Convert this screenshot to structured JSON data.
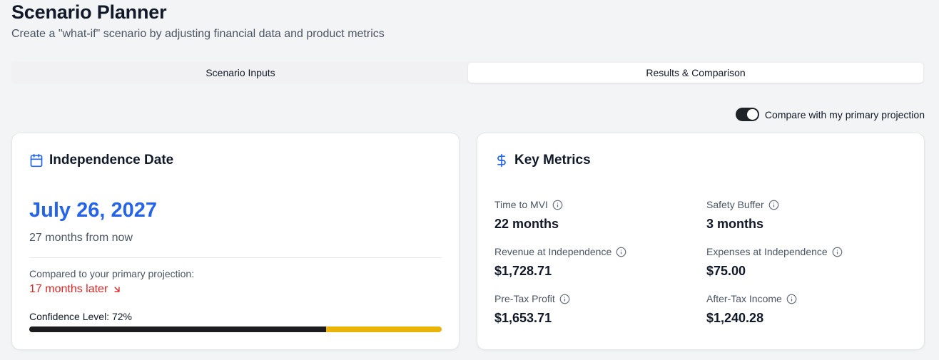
{
  "header": {
    "title": "Scenario Planner",
    "subtitle": "Create a \"what-if\" scenario by adjusting financial data and product metrics"
  },
  "tabs": [
    {
      "label": "Scenario Inputs",
      "active": false
    },
    {
      "label": "Results & Comparison",
      "active": true
    }
  ],
  "compare_toggle": {
    "label": "Compare with my primary projection",
    "on": true
  },
  "independence": {
    "title": "Independence Date",
    "icon": "calendar-icon",
    "date": "July 26, 2027",
    "months_from_now": "27 months from now",
    "compare_label": "Compared to your primary projection:",
    "compare_value": "17 months later",
    "confidence_label": "Confidence Level: 72%",
    "confidence_percent": 72
  },
  "key_metrics": {
    "title": "Key Metrics",
    "icon": "dollar-icon",
    "items": [
      {
        "label": "Time to MVI",
        "value": "22 months"
      },
      {
        "label": "Safety Buffer",
        "value": "3 months"
      },
      {
        "label": "Revenue at Independence",
        "value": "$1,728.71"
      },
      {
        "label": "Expenses at Independence",
        "value": "$75.00"
      },
      {
        "label": "Pre-Tax Profit",
        "value": "$1,653.71"
      },
      {
        "label": "After-Tax Income",
        "value": "$1,240.28"
      }
    ]
  },
  "colors": {
    "accent": "#2563eb",
    "negative": "#dc2626",
    "confidence_fill": "#1c1c1e",
    "confidence_track": "#eab308"
  }
}
